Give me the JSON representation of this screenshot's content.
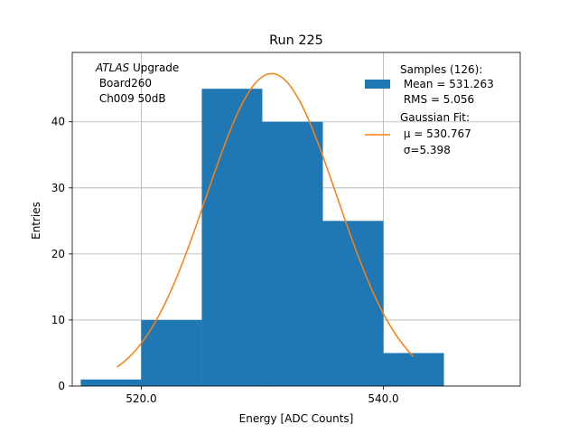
{
  "chart_data": {
    "type": "bar",
    "title": "Run 225",
    "xlabel": "Energy [ADC Counts]",
    "ylabel": "Entries",
    "xlim": [
      514.3,
      551.3
    ],
    "ylim": [
      0,
      50.5
    ],
    "grid": true,
    "x_ticks": [
      520.0,
      540.0
    ],
    "x_tick_labels": [
      "520.0",
      "540.0"
    ],
    "y_ticks": [
      0,
      10,
      20,
      30,
      40
    ],
    "y_tick_labels": [
      "0",
      "10",
      "20",
      "30",
      "40"
    ],
    "bins": [
      {
        "left": 515,
        "right": 520,
        "count": 1
      },
      {
        "left": 520,
        "right": 525,
        "count": 10
      },
      {
        "left": 525,
        "right": 530,
        "count": 45
      },
      {
        "left": 530,
        "right": 535,
        "count": 40
      },
      {
        "left": 535,
        "right": 540,
        "count": 25
      },
      {
        "left": 540,
        "right": 545,
        "count": 5
      }
    ],
    "bar_color": "#1f77b4",
    "fit": {
      "name": "Gaussian Fit",
      "mu": 530.767,
      "sigma": 5.398,
      "amplitude": 47.3,
      "x_range": [
        518.0,
        542.5
      ],
      "color": "#ff7f0e"
    },
    "annotation": {
      "italic_part": "ATLAS",
      "rest": " Upgrade",
      "line2": " Board260",
      "line3": " Ch009 50dB"
    },
    "legend": {
      "placement": "top-right",
      "samples_lines": [
        "Samples (126):",
        " Mean = 531.263",
        " RMS = 5.056"
      ],
      "fit_lines": [
        "Gaussian Fit:",
        " μ = 530.767",
        " σ=5.398"
      ]
    }
  }
}
